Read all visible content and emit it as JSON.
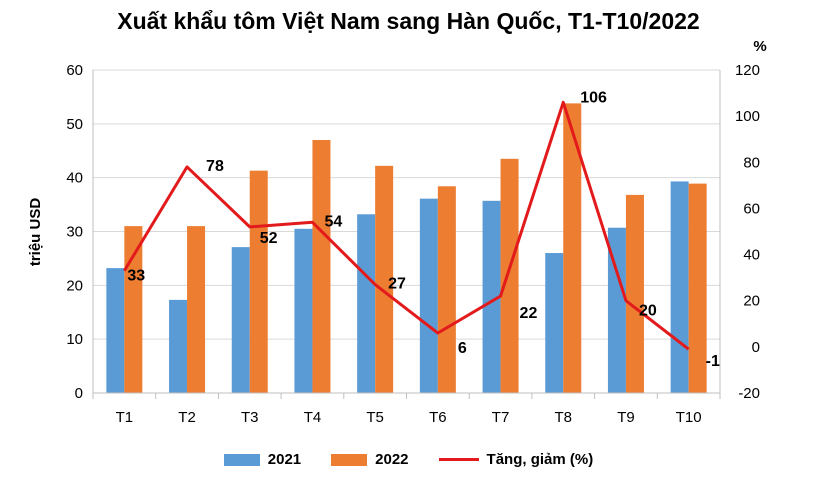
{
  "chart_data": {
    "type": "bar",
    "title": "Xuất khẩu tôm Việt Nam sang Hàn Quốc, T1-T10/2022",
    "ylabel": "triệu USD",
    "y2label": "%",
    "categories": [
      "T1",
      "T2",
      "T3",
      "T4",
      "T5",
      "T6",
      "T7",
      "T8",
      "T9",
      "T10"
    ],
    "ylim": [
      0,
      60
    ],
    "yticks": [
      "0",
      "10",
      "20",
      "30",
      "40",
      "50",
      "60"
    ],
    "y2lim": [
      -20,
      120
    ],
    "y2ticks": [
      "-20",
      "0",
      "20",
      "40",
      "60",
      "80",
      "100",
      "120"
    ],
    "series": [
      {
        "name": "2021",
        "type": "bar",
        "axis": "left",
        "color": "#5B9BD5",
        "values": [
          23.2,
          17.3,
          27.1,
          30.5,
          33.2,
          36.1,
          35.7,
          26.0,
          30.7,
          39.3
        ]
      },
      {
        "name": "2022",
        "type": "bar",
        "axis": "left",
        "color": "#ED7D31",
        "values": [
          31.0,
          31.0,
          41.3,
          47.0,
          42.2,
          38.4,
          43.5,
          53.8,
          36.8,
          38.9
        ]
      },
      {
        "name": "Tăng, giảm (%)",
        "type": "line",
        "axis": "right",
        "color": "#E31A1C",
        "values": [
          33,
          78,
          52,
          54,
          27,
          6,
          22,
          106,
          20,
          -1
        ],
        "labels": [
          "33",
          "78",
          "52",
          "54",
          "27",
          "6",
          "22",
          "106",
          "20",
          "-1"
        ]
      }
    ],
    "grid": true,
    "legend_position": "bottom"
  }
}
